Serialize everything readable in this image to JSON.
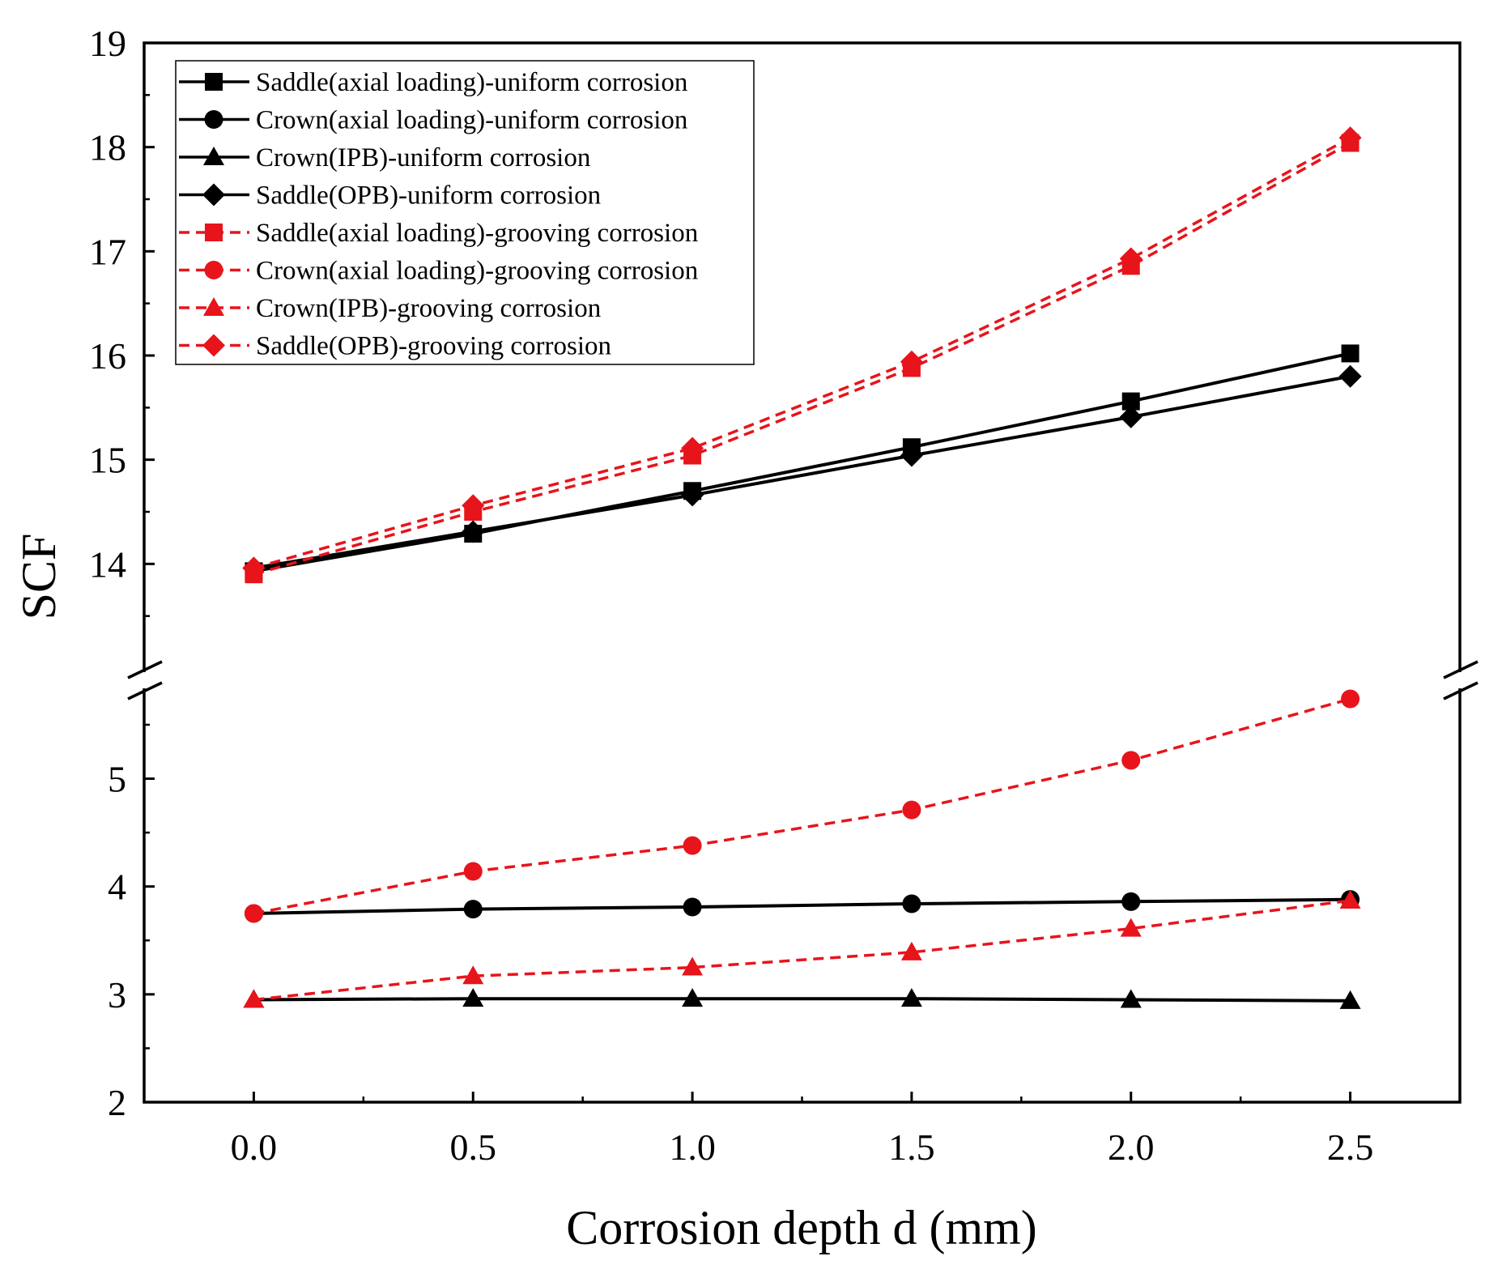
{
  "chart_data": {
    "type": "line",
    "title": "",
    "xlabel": "Corrosion depth d (mm)",
    "ylabel": "SCF",
    "x": [
      0.0,
      0.5,
      1.0,
      1.5,
      2.0,
      2.5
    ],
    "x_tick_labels": [
      "0.0",
      "0.5",
      "1.0",
      "1.5",
      "2.0",
      "2.5"
    ],
    "xlim": [
      -0.25,
      2.75
    ],
    "y_broken_axis": true,
    "y_lower_range": [
      2,
      5.8
    ],
    "y_upper_range": [
      13,
      19
    ],
    "y_tick_labels_lower": [
      "2",
      "3",
      "4",
      "5"
    ],
    "y_tick_labels_upper": [
      "14",
      "15",
      "16",
      "17",
      "18",
      "19"
    ],
    "legend_position": "top-left",
    "series": [
      {
        "name": "Saddle(axial loading)-uniform corrosion",
        "color": "#000000",
        "style": "solid",
        "marker": "square",
        "values": [
          13.93,
          14.29,
          14.7,
          15.12,
          15.56,
          16.02
        ]
      },
      {
        "name": "Crown(axial loading)-uniform corrosion",
        "color": "#000000",
        "style": "solid",
        "marker": "circle",
        "values": [
          3.75,
          3.79,
          3.81,
          3.84,
          3.86,
          3.88
        ]
      },
      {
        "name": "Crown(IPB)-uniform corrosion",
        "color": "#000000",
        "style": "solid",
        "marker": "triangle",
        "values": [
          2.95,
          2.96,
          2.96,
          2.96,
          2.95,
          2.94
        ]
      },
      {
        "name": "Saddle(OPB)-uniform corrosion",
        "color": "#000000",
        "style": "solid",
        "marker": "diamond",
        "values": [
          13.96,
          14.31,
          14.66,
          15.04,
          15.41,
          15.8
        ]
      },
      {
        "name": "Saddle(axial loading)-grooving corrosion",
        "color": "#e8141b",
        "style": "dashed",
        "marker": "square",
        "values": [
          13.9,
          14.5,
          15.04,
          15.88,
          16.86,
          18.04
        ]
      },
      {
        "name": "Crown(axial loading)-grooving corrosion",
        "color": "#e8141b",
        "style": "dashed",
        "marker": "circle",
        "values": [
          3.75,
          4.14,
          4.38,
          4.71,
          5.17,
          5.74
        ]
      },
      {
        "name": "Crown(IPB)-grooving corrosion",
        "color": "#e8141b",
        "style": "dashed",
        "marker": "triangle",
        "values": [
          2.95,
          3.17,
          3.25,
          3.39,
          3.61,
          3.87
        ]
      },
      {
        "name": "Saddle(OPB)-grooving corrosion",
        "color": "#e8141b",
        "style": "dashed",
        "marker": "diamond",
        "values": [
          13.96,
          14.56,
          15.11,
          15.94,
          16.93,
          18.09
        ]
      }
    ]
  }
}
